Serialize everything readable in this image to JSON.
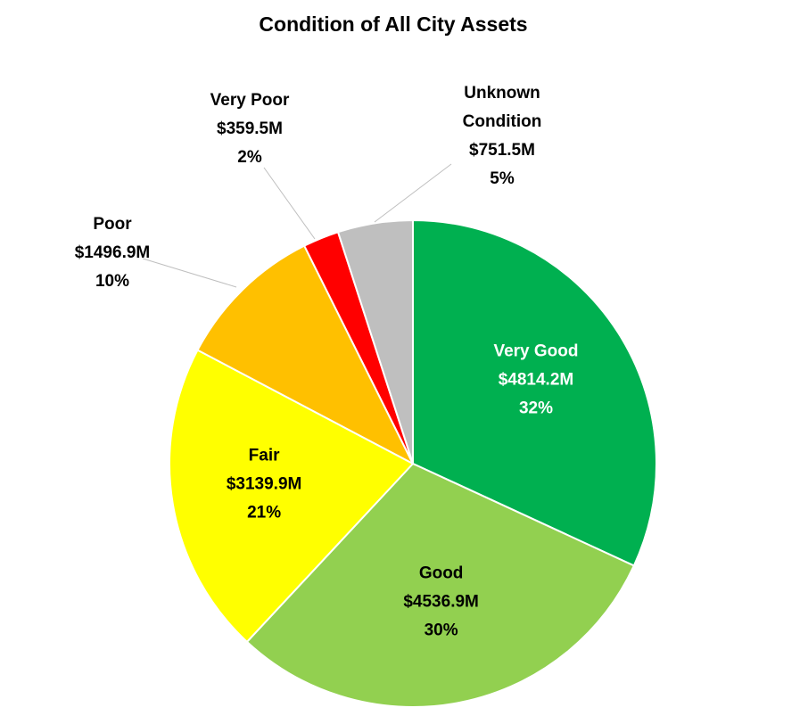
{
  "chart_data": {
    "type": "pie",
    "title": "Condition of All City Assets",
    "slices": [
      {
        "category": "Very Good",
        "amount": "$4814.2M",
        "percent": "32%",
        "value": 4814.2,
        "color": "#00B050",
        "label_color": "#ffffff"
      },
      {
        "category": "Good",
        "amount": "$4536.9M",
        "percent": "30%",
        "value": 4536.9,
        "color": "#92D050",
        "label_color": "#000000"
      },
      {
        "category": "Fair",
        "amount": "$3139.9M",
        "percent": "21%",
        "value": 3139.9,
        "color": "#FFFF00",
        "label_color": "#000000"
      },
      {
        "category": "Poor",
        "amount": "$1496.9M",
        "percent": "10%",
        "value": 1496.9,
        "color": "#FFC000",
        "label_color": "#000000"
      },
      {
        "category": "Very Poor",
        "amount": "$359.5M",
        "percent": "2%",
        "value": 359.5,
        "color": "#FF0000",
        "label_color": "#000000"
      },
      {
        "category": "Unknown Condition",
        "amount": "$751.5M",
        "percent": "5%",
        "value": 751.5,
        "color": "#BFBFBF",
        "label_color": "#000000"
      }
    ]
  }
}
